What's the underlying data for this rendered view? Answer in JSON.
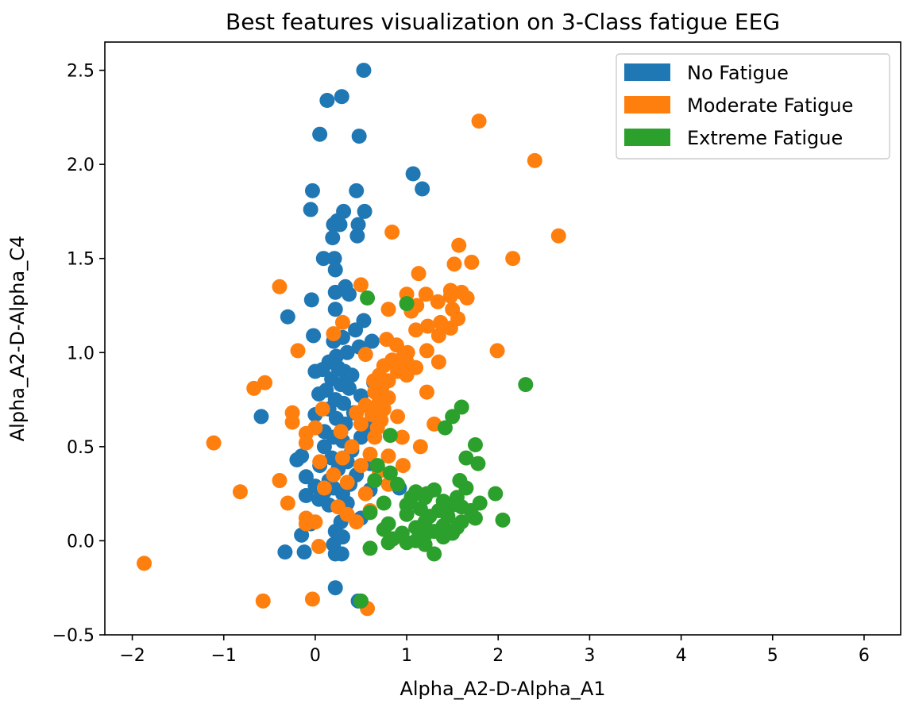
{
  "chart_data": {
    "type": "scatter",
    "title": "Best features visualization on 3-Class fatigue EEG",
    "xlabel": "Alpha_A2-D-Alpha_A1",
    "ylabel": "Alpha_A2-D-Alpha_C4",
    "xlim": [
      -2.3,
      6.4
    ],
    "ylim": [
      -0.5,
      2.65
    ],
    "xticks": [
      -2,
      -1,
      0,
      1,
      2,
      3,
      4,
      5,
      6
    ],
    "xtick_labels": [
      "−2",
      "−1",
      "0",
      "1",
      "2",
      "3",
      "4",
      "5",
      "6"
    ],
    "yticks": [
      -0.5,
      0.0,
      0.5,
      1.0,
      1.5,
      2.0,
      2.5
    ],
    "ytick_labels": [
      "−0.5",
      "0.0",
      "0.5",
      "1.0",
      "1.5",
      "2.0",
      "2.5"
    ],
    "grid": false,
    "legend_position": "top-right",
    "series": [
      {
        "name": "No Fatigue",
        "color": "#1f77b4",
        "points": [
          [
            0.53,
            2.5
          ],
          [
            0.13,
            2.34
          ],
          [
            0.29,
            2.36
          ],
          [
            0.05,
            2.16
          ],
          [
            0.48,
            2.15
          ],
          [
            1.07,
            1.95
          ],
          [
            1.17,
            1.87
          ],
          [
            -0.03,
            1.86
          ],
          [
            0.45,
            1.86
          ],
          [
            -0.05,
            1.76
          ],
          [
            0.54,
            1.75
          ],
          [
            0.31,
            1.75
          ],
          [
            0.24,
            1.7
          ],
          [
            0.2,
            1.68
          ],
          [
            0.27,
            1.68
          ],
          [
            0.47,
            1.68
          ],
          [
            0.19,
            1.61
          ],
          [
            0.46,
            1.62
          ],
          [
            0.09,
            1.5
          ],
          [
            0.21,
            1.5
          ],
          [
            0.22,
            1.44
          ],
          [
            0.33,
            1.35
          ],
          [
            0.22,
            1.32
          ],
          [
            0.37,
            1.31
          ],
          [
            -0.04,
            1.28
          ],
          [
            0.22,
            1.23
          ],
          [
            -0.3,
            1.19
          ],
          [
            0.53,
            1.17
          ],
          [
            0.44,
            1.12
          ],
          [
            0.3,
            1.08
          ],
          [
            0.2,
            1.06
          ],
          [
            -0.02,
            1.09
          ],
          [
            0.62,
            1.06
          ],
          [
            0.48,
            1.03
          ],
          [
            0.35,
            1.0
          ],
          [
            0.23,
            0.98
          ],
          [
            0.15,
            0.95
          ],
          [
            0.08,
            0.91
          ],
          [
            0.25,
            0.92
          ],
          [
            0.32,
            0.9
          ],
          [
            0.0,
            0.9
          ],
          [
            0.4,
            0.88
          ],
          [
            0.18,
            0.86
          ],
          [
            0.28,
            0.83
          ],
          [
            0.64,
            0.84
          ],
          [
            0.37,
            0.81
          ],
          [
            0.12,
            0.8
          ],
          [
            0.04,
            0.78
          ],
          [
            0.5,
            0.77
          ],
          [
            0.22,
            0.75
          ],
          [
            0.31,
            0.73
          ],
          [
            0.15,
            0.7
          ],
          [
            0.42,
            0.68
          ],
          [
            -0.59,
            0.66
          ],
          [
            0.0,
            0.67
          ],
          [
            0.23,
            0.65
          ],
          [
            0.33,
            0.62
          ],
          [
            0.6,
            0.6
          ],
          [
            0.1,
            0.58
          ],
          [
            0.2,
            0.55
          ],
          [
            0.5,
            0.55
          ],
          [
            0.3,
            0.53
          ],
          [
            0.1,
            0.5
          ],
          [
            0.4,
            0.48
          ],
          [
            -0.15,
            0.45
          ],
          [
            0.18,
            0.44
          ],
          [
            -0.2,
            0.43
          ],
          [
            0.35,
            0.42
          ],
          [
            0.6,
            0.41
          ],
          [
            0.05,
            0.4
          ],
          [
            0.25,
            0.38
          ],
          [
            0.45,
            0.35
          ],
          [
            -0.1,
            0.34
          ],
          [
            0.15,
            0.32
          ],
          [
            0.38,
            0.3
          ],
          [
            0.0,
            0.29
          ],
          [
            0.2,
            0.28
          ],
          [
            0.6,
            0.27
          ],
          [
            0.92,
            0.28
          ],
          [
            0.1,
            0.26
          ],
          [
            0.3,
            0.25
          ],
          [
            -0.1,
            0.24
          ],
          [
            0.04,
            0.22
          ],
          [
            0.35,
            0.2
          ],
          [
            0.15,
            0.19
          ],
          [
            0.5,
            0.12
          ],
          [
            0.28,
            0.1
          ],
          [
            -0.05,
            0.09
          ],
          [
            0.22,
            0.05
          ],
          [
            -0.15,
            0.03
          ],
          [
            0.3,
            0.02
          ],
          [
            0.2,
            -0.02
          ],
          [
            -0.33,
            -0.06
          ],
          [
            -0.12,
            -0.06
          ],
          [
            0.22,
            -0.07
          ],
          [
            0.29,
            -0.07
          ],
          [
            0.22,
            -0.25
          ],
          [
            0.47,
            -0.32
          ]
        ]
      },
      {
        "name": "Moderate Fatigue",
        "color": "#ff7f0e",
        "points": [
          [
            1.79,
            2.23
          ],
          [
            2.4,
            2.02
          ],
          [
            0.84,
            1.64
          ],
          [
            2.66,
            1.62
          ],
          [
            1.57,
            1.57
          ],
          [
            2.16,
            1.5
          ],
          [
            1.71,
            1.48
          ],
          [
            1.52,
            1.47
          ],
          [
            1.13,
            1.42
          ],
          [
            0.5,
            1.36
          ],
          [
            -0.39,
            1.35
          ],
          [
            1.0,
            1.31
          ],
          [
            1.21,
            1.31
          ],
          [
            1.48,
            1.33
          ],
          [
            1.6,
            1.32
          ],
          [
            1.48,
            1.3
          ],
          [
            1.66,
            1.29
          ],
          [
            1.34,
            1.27
          ],
          [
            1.11,
            1.25
          ],
          [
            0.8,
            1.23
          ],
          [
            1.05,
            1.22
          ],
          [
            1.5,
            1.23
          ],
          [
            1.56,
            1.18
          ],
          [
            0.3,
            1.16
          ],
          [
            1.37,
            1.16
          ],
          [
            1.23,
            1.14
          ],
          [
            1.1,
            1.12
          ],
          [
            1.48,
            1.13
          ],
          [
            0.2,
            1.1
          ],
          [
            0.78,
            1.07
          ],
          [
            1.35,
            1.09
          ],
          [
            0.89,
            1.04
          ],
          [
            1.99,
            1.01
          ],
          [
            -0.19,
            1.01
          ],
          [
            1.22,
            1.01
          ],
          [
            1.01,
            1.0
          ],
          [
            0.55,
            0.99
          ],
          [
            0.95,
            0.97
          ],
          [
            1.0,
            0.95
          ],
          [
            0.84,
            0.96
          ],
          [
            1.35,
            0.95
          ],
          [
            1.1,
            0.92
          ],
          [
            0.75,
            0.93
          ],
          [
            0.9,
            0.9
          ],
          [
            0.7,
            0.88
          ],
          [
            1.0,
            0.88
          ],
          [
            0.8,
            0.85
          ],
          [
            0.64,
            0.85
          ],
          [
            -0.55,
            0.84
          ],
          [
            0.73,
            0.82
          ],
          [
            -0.67,
            0.81
          ],
          [
            1.22,
            0.79
          ],
          [
            0.65,
            0.79
          ],
          [
            0.8,
            0.76
          ],
          [
            0.7,
            0.74
          ],
          [
            0.55,
            0.72
          ],
          [
            0.64,
            0.7
          ],
          [
            0.75,
            0.7
          ],
          [
            0.08,
            0.7
          ],
          [
            0.45,
            0.68
          ],
          [
            -0.25,
            0.68
          ],
          [
            0.62,
            0.67
          ],
          [
            0.9,
            0.66
          ],
          [
            0.72,
            0.64
          ],
          [
            -0.25,
            0.63
          ],
          [
            0.5,
            0.62
          ],
          [
            0.68,
            0.6
          ],
          [
            1.3,
            0.62
          ],
          [
            0.0,
            0.6
          ],
          [
            0.28,
            0.58
          ],
          [
            -0.1,
            0.57
          ],
          [
            0.65,
            0.55
          ],
          [
            0.95,
            0.55
          ],
          [
            -0.1,
            0.52
          ],
          [
            -1.11,
            0.52
          ],
          [
            0.4,
            0.5
          ],
          [
            1.15,
            0.5
          ],
          [
            0.6,
            0.46
          ],
          [
            0.8,
            0.45
          ],
          [
            0.3,
            0.44
          ],
          [
            0.05,
            0.42
          ],
          [
            0.5,
            0.4
          ],
          [
            0.96,
            0.4
          ],
          [
            0.7,
            0.37
          ],
          [
            0.2,
            0.35
          ],
          [
            -0.39,
            0.32
          ],
          [
            0.35,
            0.31
          ],
          [
            0.8,
            0.3
          ],
          [
            0.1,
            0.28
          ],
          [
            -0.82,
            0.26
          ],
          [
            0.55,
            0.25
          ],
          [
            -0.3,
            0.2
          ],
          [
            0.25,
            0.18
          ],
          [
            0.6,
            0.16
          ],
          [
            0.35,
            0.14
          ],
          [
            -0.1,
            0.12
          ],
          [
            0.0,
            0.1
          ],
          [
            0.45,
            0.1
          ],
          [
            -0.1,
            0.09
          ],
          [
            0.04,
            -0.03
          ],
          [
            -1.87,
            -0.12
          ],
          [
            -0.03,
            -0.31
          ],
          [
            -0.57,
            -0.32
          ],
          [
            0.57,
            -0.36
          ]
        ]
      },
      {
        "name": "Extreme Fatigue",
        "color": "#2ca02c",
        "points": [
          [
            0.57,
            1.29
          ],
          [
            1.0,
            1.26
          ],
          [
            2.3,
            0.83
          ],
          [
            1.6,
            0.71
          ],
          [
            1.5,
            0.66
          ],
          [
            1.42,
            0.6
          ],
          [
            0.82,
            0.56
          ],
          [
            1.75,
            0.51
          ],
          [
            1.65,
            0.44
          ],
          [
            1.78,
            0.41
          ],
          [
            0.68,
            0.4
          ],
          [
            0.82,
            0.36
          ],
          [
            0.65,
            0.32
          ],
          [
            1.58,
            0.32
          ],
          [
            1.65,
            0.28
          ],
          [
            0.9,
            0.3
          ],
          [
            1.3,
            0.27
          ],
          [
            1.1,
            0.26
          ],
          [
            1.22,
            0.25
          ],
          [
            1.97,
            0.25
          ],
          [
            1.05,
            0.23
          ],
          [
            1.2,
            0.23
          ],
          [
            1.55,
            0.23
          ],
          [
            1.4,
            0.21
          ],
          [
            0.75,
            0.2
          ],
          [
            1.8,
            0.2
          ],
          [
            1.0,
            0.19
          ],
          [
            1.5,
            0.19
          ],
          [
            1.6,
            0.18
          ],
          [
            1.15,
            0.17
          ],
          [
            1.35,
            0.16
          ],
          [
            1.7,
            0.16
          ],
          [
            0.6,
            0.15
          ],
          [
            1.0,
            0.14
          ],
          [
            1.25,
            0.13
          ],
          [
            1.45,
            0.13
          ],
          [
            1.75,
            0.12
          ],
          [
            2.05,
            0.11
          ],
          [
            1.2,
            0.1
          ],
          [
            1.6,
            0.1
          ],
          [
            0.8,
            0.09
          ],
          [
            1.4,
            0.08
          ],
          [
            1.1,
            0.07
          ],
          [
            1.55,
            0.07
          ],
          [
            0.75,
            0.06
          ],
          [
            1.3,
            0.05
          ],
          [
            1.5,
            0.04
          ],
          [
            0.95,
            0.04
          ],
          [
            1.2,
            0.03
          ],
          [
            1.4,
            0.02
          ],
          [
            0.85,
            0.01
          ],
          [
            1.1,
            0.0
          ],
          [
            0.8,
            -0.01
          ],
          [
            1.0,
            -0.01
          ],
          [
            1.2,
            -0.02
          ],
          [
            0.6,
            -0.04
          ],
          [
            1.3,
            -0.07
          ],
          [
            0.5,
            -0.32
          ]
        ]
      }
    ]
  }
}
